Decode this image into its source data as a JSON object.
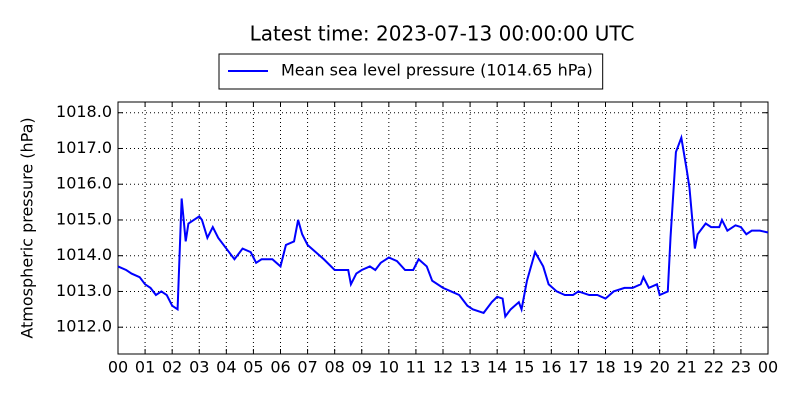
{
  "chart_data": {
    "type": "line",
    "title": "Latest time: 2023-07-13 00:00:00 UTC",
    "y_label": "Atmospheric pressure (hPa)",
    "legend_position": "top",
    "grid": true,
    "x": [
      0.0,
      0.3,
      0.5,
      0.8,
      1.0,
      1.2,
      1.4,
      1.6,
      1.8,
      2.0,
      2.2,
      2.35,
      2.5,
      2.6,
      2.8,
      3.0,
      3.1,
      3.3,
      3.5,
      3.7,
      4.0,
      4.3,
      4.6,
      4.9,
      5.1,
      5.3,
      5.7,
      6.0,
      6.2,
      6.5,
      6.65,
      6.8,
      7.0,
      7.3,
      7.6,
      8.0,
      8.3,
      8.5,
      8.6,
      8.8,
      9.0,
      9.3,
      9.5,
      9.7,
      10.0,
      10.3,
      10.6,
      10.9,
      11.1,
      11.4,
      11.6,
      12.0,
      12.3,
      12.6,
      12.9,
      13.1,
      13.5,
      13.8,
      14.0,
      14.2,
      14.3,
      14.5,
      14.8,
      14.9,
      15.1,
      15.4,
      15.7,
      15.9,
      16.2,
      16.5,
      16.8,
      17.0,
      17.4,
      17.7,
      18.0,
      18.3,
      18.7,
      19.0,
      19.3,
      19.4,
      19.6,
      19.9,
      20.0,
      20.3,
      20.4,
      20.6,
      20.8,
      21.0,
      21.1,
      21.3,
      21.4,
      21.7,
      21.9,
      22.2,
      22.3,
      22.5,
      22.8,
      23.0,
      23.2,
      23.4,
      23.7,
      24.0
    ],
    "series": [
      {
        "name": "Mean sea level pressure (1014.65 hPa)",
        "color": "#0000ff",
        "values": [
          1013.7,
          1013.6,
          1013.5,
          1013.4,
          1013.2,
          1013.1,
          1012.9,
          1013.0,
          1012.9,
          1012.6,
          1012.5,
          1015.6,
          1014.4,
          1014.9,
          1015.0,
          1015.1,
          1015.0,
          1014.5,
          1014.8,
          1014.5,
          1014.2,
          1013.9,
          1014.2,
          1014.1,
          1013.8,
          1013.9,
          1013.9,
          1013.7,
          1014.3,
          1014.4,
          1015.0,
          1014.6,
          1014.3,
          1014.1,
          1013.9,
          1013.6,
          1013.6,
          1013.6,
          1013.2,
          1013.5,
          1013.6,
          1013.7,
          1013.6,
          1013.8,
          1013.95,
          1013.85,
          1013.6,
          1013.6,
          1013.9,
          1013.7,
          1013.3,
          1013.1,
          1013.0,
          1012.9,
          1012.6,
          1012.5,
          1012.4,
          1012.7,
          1012.85,
          1012.8,
          1012.3,
          1012.5,
          1012.7,
          1012.5,
          1013.3,
          1014.1,
          1013.7,
          1013.2,
          1013.0,
          1012.9,
          1012.9,
          1013.0,
          1012.9,
          1012.9,
          1012.8,
          1013.0,
          1013.1,
          1013.1,
          1013.2,
          1013.4,
          1013.1,
          1013.2,
          1012.9,
          1013.0,
          1014.5,
          1016.9,
          1017.3,
          1016.4,
          1015.9,
          1014.2,
          1014.6,
          1014.9,
          1014.8,
          1014.8,
          1015.0,
          1014.7,
          1014.85,
          1014.8,
          1014.6,
          1014.7,
          1014.7,
          1014.65
        ]
      }
    ],
    "xlim": [
      0,
      24
    ],
    "xticks": [
      {
        "value": 0,
        "label": "00"
      },
      {
        "value": 1,
        "label": "01"
      },
      {
        "value": 2,
        "label": "02"
      },
      {
        "value": 3,
        "label": "03"
      },
      {
        "value": 4,
        "label": "04"
      },
      {
        "value": 5,
        "label": "05"
      },
      {
        "value": 6,
        "label": "06"
      },
      {
        "value": 7,
        "label": "07"
      },
      {
        "value": 8,
        "label": "08"
      },
      {
        "value": 9,
        "label": "09"
      },
      {
        "value": 10,
        "label": "10"
      },
      {
        "value": 11,
        "label": "11"
      },
      {
        "value": 12,
        "label": "12"
      },
      {
        "value": 13,
        "label": "13"
      },
      {
        "value": 14,
        "label": "14"
      },
      {
        "value": 15,
        "label": "15"
      },
      {
        "value": 16,
        "label": "16"
      },
      {
        "value": 17,
        "label": "17"
      },
      {
        "value": 18,
        "label": "18"
      },
      {
        "value": 19,
        "label": "19"
      },
      {
        "value": 20,
        "label": "20"
      },
      {
        "value": 21,
        "label": "21"
      },
      {
        "value": 22,
        "label": "22"
      },
      {
        "value": 23,
        "label": "23"
      },
      {
        "value": 24,
        "label": "00"
      }
    ],
    "ylim": [
      1011.25,
      1018.3
    ],
    "yticks": [
      {
        "value": 1012,
        "label": "1012.0"
      },
      {
        "value": 1013,
        "label": "1013.0"
      },
      {
        "value": 1014,
        "label": "1014.0"
      },
      {
        "value": 1015,
        "label": "1015.0"
      },
      {
        "value": 1016,
        "label": "1016.0"
      },
      {
        "value": 1017,
        "label": "1017.0"
      },
      {
        "value": 1018,
        "label": "1018.0"
      }
    ]
  }
}
